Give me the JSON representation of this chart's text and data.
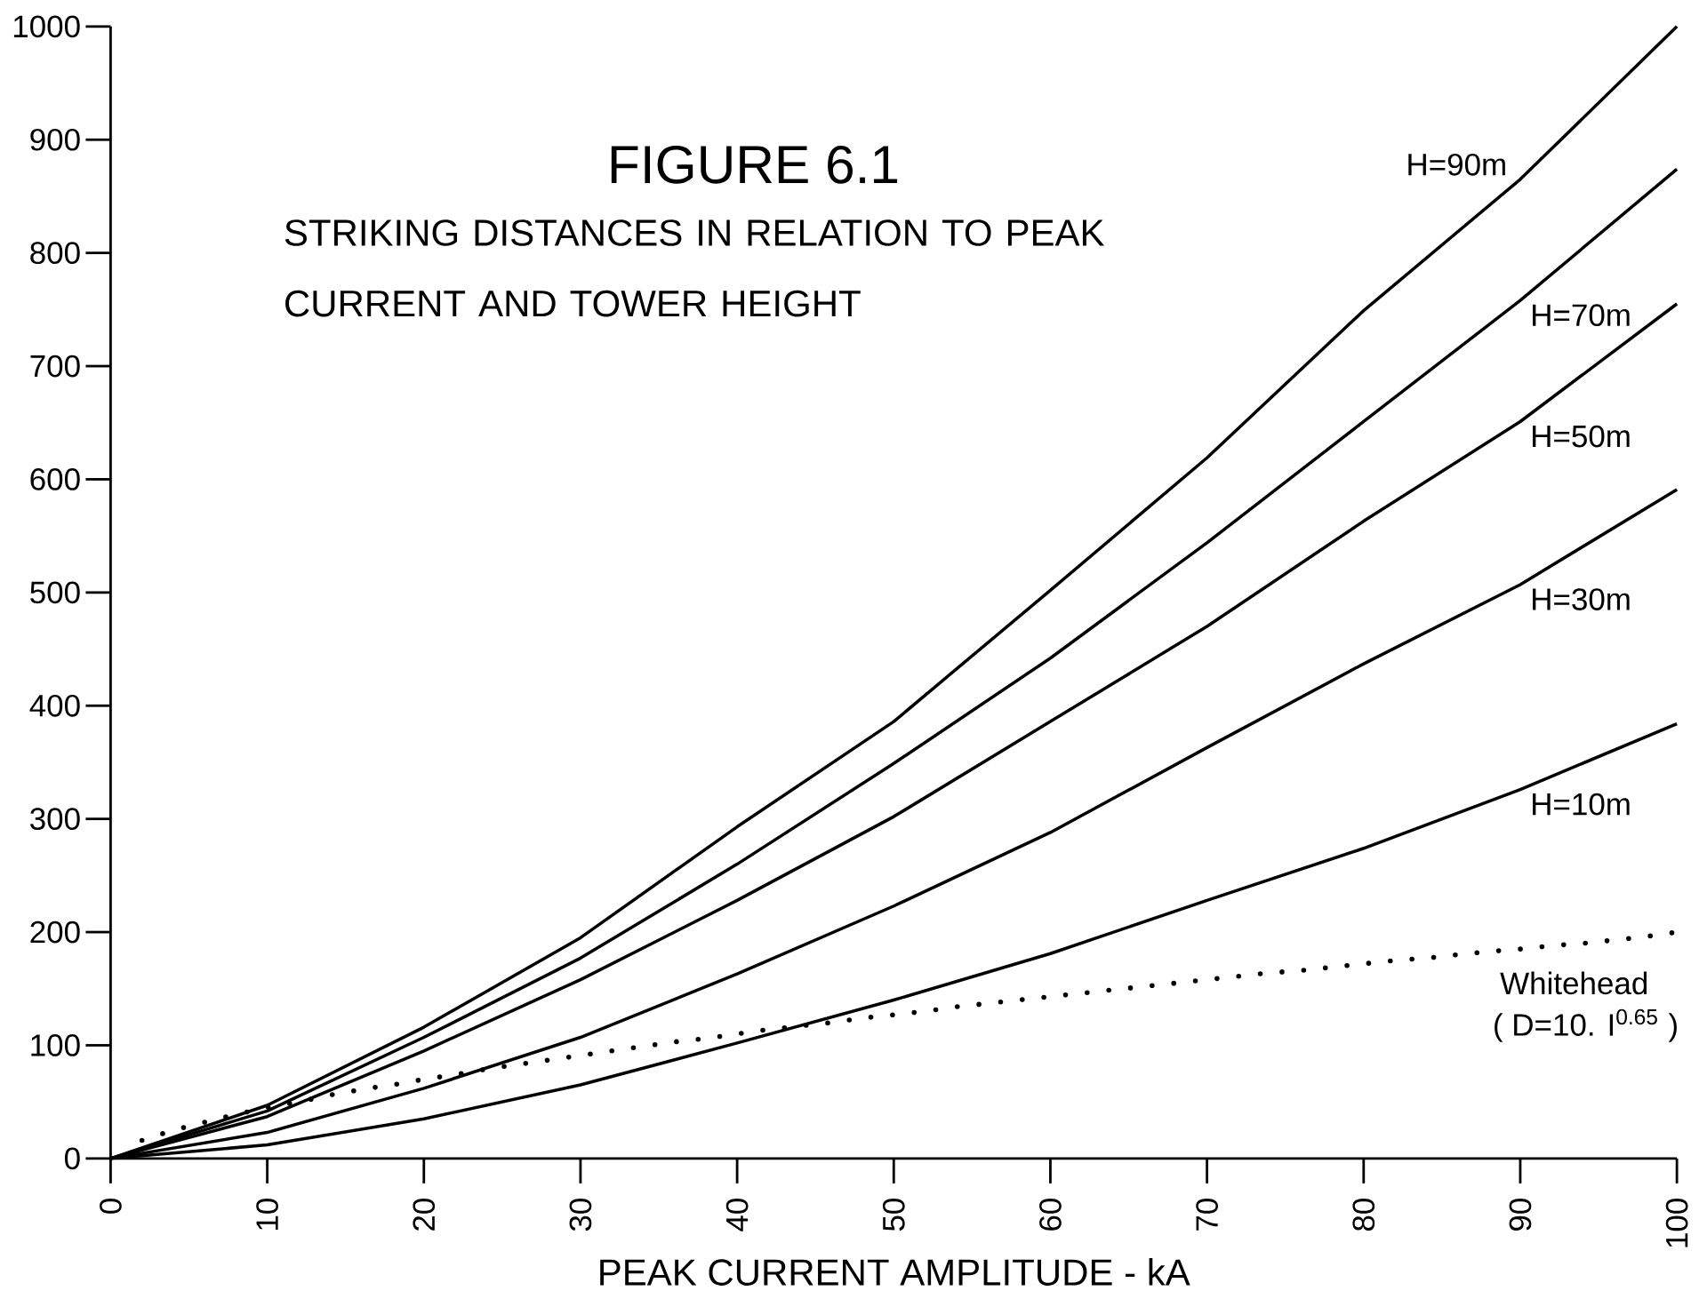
{
  "chart_data": {
    "type": "line",
    "title": "FIGURE 6.1",
    "subtitle": "STRIKING DISTANCES IN RELATION TO PEAK CURRENT AND TOWER HEIGHT",
    "xlabel": "PEAK CURRENT AMPLITUDE - kA",
    "annotations": [
      "( D=10. I$^{0.65}$ )"
    ],
    "xlim": [
      0,
      100
    ],
    "ylim": [
      0,
      1000
    ],
    "xticks": [
      0,
      10,
      20,
      30,
      40,
      50,
      60,
      70,
      80,
      90,
      100
    ],
    "yticks": [
      0,
      100,
      200,
      300,
      400,
      500,
      600,
      700,
      800,
      900,
      1000
    ],
    "grid": false,
    "series": [
      {
        "name": "H=90m",
        "color": "#000000",
        "line_style": "solid",
        "x": [
          0,
          10,
          20,
          30,
          40,
          50,
          60,
          70,
          80,
          90,
          100
        ],
        "values": [
          0,
          47,
          116,
          195,
          293,
          386,
          502,
          619,
          749,
          865,
          1000
        ]
      },
      {
        "name": "H=70m",
        "color": "#000000",
        "line_style": "solid",
        "x": [
          0,
          10,
          20,
          30,
          40,
          50,
          60,
          70,
          80,
          90,
          100
        ],
        "values": [
          0,
          42,
          107,
          177,
          260,
          349,
          442,
          544,
          651,
          758,
          874
        ]
      },
      {
        "name": "H=50m",
        "color": "#000000",
        "line_style": "solid",
        "x": [
          0,
          10,
          20,
          30,
          40,
          50,
          60,
          70,
          80,
          90,
          100
        ],
        "values": [
          0,
          37,
          95,
          158,
          228,
          302,
          386,
          470,
          563,
          651,
          755
        ]
      },
      {
        "name": "H=30m",
        "color": "#000000",
        "line_style": "solid",
        "x": [
          0,
          10,
          20,
          30,
          40,
          50,
          60,
          70,
          80,
          90,
          100
        ],
        "values": [
          0,
          23,
          62,
          107,
          163,
          223,
          288,
          363,
          437,
          507,
          591
        ]
      },
      {
        "name": "H=10m",
        "color": "#000000",
        "line_style": "solid",
        "x": [
          0,
          10,
          20,
          30,
          40,
          50,
          60,
          70,
          80,
          90,
          100
        ],
        "values": [
          0,
          12,
          35,
          65,
          102,
          140,
          181,
          228,
          274,
          326,
          384
        ]
      },
      {
        "name": "Whitehead",
        "color": "#000000",
        "line_style": "dotted",
        "x": [
          2,
          4,
          6,
          8,
          10,
          12,
          14,
          16,
          18,
          20,
          22,
          24,
          26,
          28,
          30,
          32,
          34,
          36,
          38,
          40,
          42,
          44,
          46,
          48,
          50,
          52,
          54,
          56,
          58,
          60,
          62,
          64,
          66,
          68,
          70,
          72,
          74,
          76,
          78,
          80,
          82,
          84,
          86,
          88,
          90,
          92,
          94,
          96,
          98,
          100
        ],
        "values": [
          16,
          25,
          32,
          39,
          45,
          50,
          56,
          61,
          65,
          70,
          74,
          79,
          83,
          87,
          91,
          95,
          99,
          103,
          106,
          110,
          114,
          117,
          120,
          124,
          127,
          130,
          134,
          137,
          140,
          143,
          146,
          149,
          152,
          155,
          158,
          161,
          164,
          166,
          169,
          172,
          175,
          177,
          180,
          183,
          185,
          188,
          190,
          193,
          196,
          200
        ]
      }
    ]
  }
}
